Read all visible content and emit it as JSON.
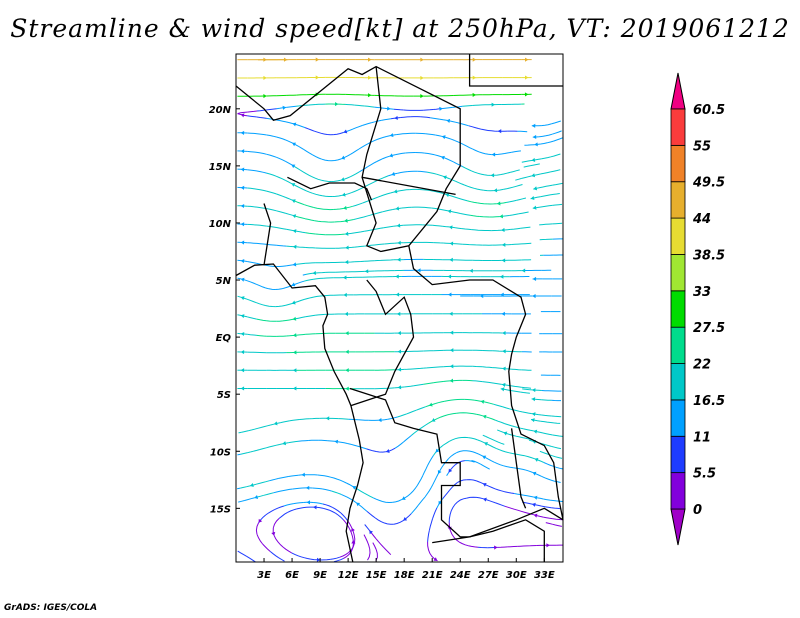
{
  "title": "Streamline & wind speed[kt] at 250hPa, VT: 2019061212",
  "footer": "GrADS: IGES/COLA",
  "map": {
    "lon_range": [
      0,
      35
    ],
    "lat_range": [
      -19.7,
      24.8
    ],
    "lat_ticks": [
      {
        "v": 20,
        "label": "20N"
      },
      {
        "v": 15,
        "label": "15N"
      },
      {
        "v": 10,
        "label": "10N"
      },
      {
        "v": 5,
        "label": "5N"
      },
      {
        "v": 0,
        "label": "EQ"
      },
      {
        "v": -5,
        "label": "5S"
      },
      {
        "v": -10,
        "label": "10S"
      },
      {
        "v": -15,
        "label": "15S"
      }
    ],
    "lon_ticks": [
      {
        "v": 3,
        "label": "3E"
      },
      {
        "v": 6,
        "label": "6E"
      },
      {
        "v": 9,
        "label": "9E"
      },
      {
        "v": 12,
        "label": "12E"
      },
      {
        "v": 15,
        "label": "15E"
      },
      {
        "v": 18,
        "label": "18E"
      },
      {
        "v": 21,
        "label": "21E"
      },
      {
        "v": 24,
        "label": "24E"
      },
      {
        "v": 27,
        "label": "27E"
      },
      {
        "v": 30,
        "label": "30E"
      },
      {
        "v": 33,
        "label": "33E"
      }
    ]
  },
  "colorbar": {
    "labels": [
      "0",
      "5.5",
      "11",
      "16.5",
      "22",
      "27.5",
      "33",
      "38.5",
      "44",
      "49.5",
      "55",
      "60.5"
    ],
    "levels": [
      0,
      5.5,
      11,
      16.5,
      22,
      27.5,
      33,
      38.5,
      44,
      49.5,
      55,
      60.5
    ],
    "colors": [
      "#a000c8",
      "#8200dc",
      "#1e3cff",
      "#00a0ff",
      "#00c8c8",
      "#00dc8c",
      "#00dc00",
      "#a0e632",
      "#e6dc32",
      "#e6af2d",
      "#f08228",
      "#fa3c3c",
      "#f00082"
    ]
  }
}
